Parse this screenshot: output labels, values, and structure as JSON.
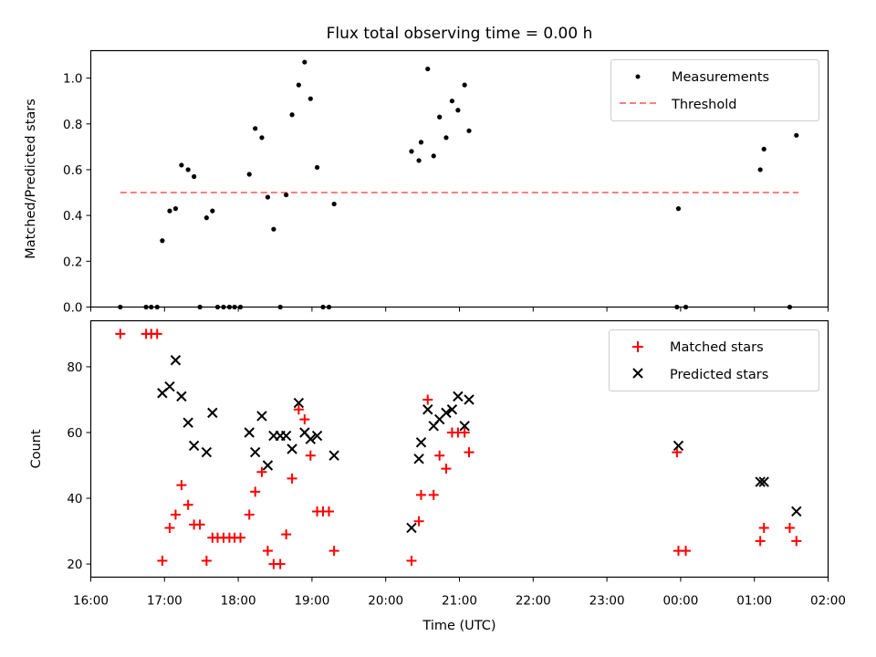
{
  "chart_data": {
    "type": "scatter",
    "title": "Flux total observing time = 0.00 h",
    "xlabel": "Time (UTC)",
    "x_ticks": [
      "16:00",
      "17:00",
      "18:00",
      "19:00",
      "20:00",
      "21:00",
      "22:00",
      "23:00",
      "00:00",
      "01:00",
      "02:00"
    ],
    "x_range_hours": [
      16,
      26
    ],
    "panels": [
      {
        "name": "ratio",
        "ylabel": "Matched/Predicted stars",
        "ylim": [
          0,
          1.12
        ],
        "y_ticks": [
          "0.0",
          "0.2",
          "0.4",
          "0.6",
          "0.8",
          "1.0"
        ],
        "legend": [
          "Measurements",
          "Threshold"
        ],
        "threshold": {
          "value": 0.5,
          "x_start": 16.4,
          "x_end": 25.6,
          "color": "#ff7f7f"
        },
        "measurements": {
          "color": "#000000",
          "x": [
            16.4,
            16.75,
            16.82,
            16.9,
            16.97,
            17.07,
            17.15,
            17.23,
            17.32,
            17.4,
            17.48,
            17.57,
            17.65,
            17.72,
            17.8,
            17.88,
            17.95,
            18.03,
            18.15,
            18.23,
            18.32,
            18.4,
            18.48,
            18.57,
            18.65,
            18.73,
            18.82,
            18.9,
            18.98,
            19.07,
            19.15,
            19.23,
            19.3,
            20.35,
            20.45,
            20.48,
            20.57,
            20.65,
            20.73,
            20.82,
            20.9,
            20.98,
            21.07,
            21.13,
            23.95,
            23.97,
            24.07,
            25.08,
            25.13,
            25.48,
            25.57
          ],
          "y": [
            0.0,
            0.0,
            0.0,
            0.0,
            0.29,
            0.42,
            0.43,
            0.62,
            0.6,
            0.57,
            0.0,
            0.39,
            0.42,
            0.0,
            0.0,
            0.0,
            0.0,
            0.0,
            0.58,
            0.78,
            0.74,
            0.48,
            0.34,
            0.0,
            0.49,
            0.84,
            0.97,
            1.07,
            0.91,
            0.61,
            0.0,
            0.0,
            0.45,
            0.68,
            0.64,
            0.72,
            1.04,
            0.66,
            0.83,
            0.74,
            0.9,
            0.86,
            0.97,
            0.77,
            0.0,
            0.43,
            0.0,
            0.6,
            0.69,
            0.0,
            0.75
          ]
        }
      },
      {
        "name": "counts",
        "ylabel": "Count",
        "ylim": [
          16,
          94
        ],
        "y_ticks": [
          "20",
          "40",
          "60",
          "80"
        ],
        "legend": [
          "Matched stars",
          "Predicted stars"
        ],
        "matched": {
          "color": "#ff0000",
          "x": [
            16.4,
            16.75,
            16.82,
            16.9,
            16.97,
            17.07,
            17.15,
            17.23,
            17.32,
            17.4,
            17.48,
            17.57,
            17.65,
            17.72,
            17.8,
            17.88,
            17.95,
            18.03,
            18.15,
            18.23,
            18.32,
            18.4,
            18.48,
            18.57,
            18.65,
            18.73,
            18.82,
            18.9,
            18.98,
            19.07,
            19.15,
            19.23,
            19.3,
            20.35,
            20.45,
            20.48,
            20.57,
            20.65,
            20.73,
            20.82,
            20.9,
            20.98,
            21.07,
            21.13,
            23.95,
            23.97,
            24.07,
            25.08,
            25.13,
            25.48,
            25.57
          ],
          "y": [
            90,
            90,
            90,
            90,
            21,
            31,
            35,
            44,
            38,
            32,
            32,
            21,
            28,
            28,
            28,
            28,
            28,
            28,
            35,
            42,
            48,
            24,
            20,
            20,
            29,
            46,
            67,
            64,
            53,
            36,
            36,
            36,
            24,
            21,
            33,
            41,
            70,
            41,
            53,
            49,
            60,
            60,
            60,
            54,
            54,
            24,
            24,
            27,
            31,
            31,
            27
          ]
        },
        "predicted": {
          "color": "#000000",
          "x": [
            16.97,
            17.07,
            17.15,
            17.23,
            17.32,
            17.4,
            17.57,
            17.65,
            18.15,
            18.23,
            18.32,
            18.4,
            18.48,
            18.57,
            18.65,
            18.73,
            18.82,
            18.9,
            18.98,
            19.07,
            19.3,
            20.35,
            20.45,
            20.48,
            20.57,
            20.65,
            20.73,
            20.82,
            20.9,
            20.98,
            21.07,
            21.13,
            23.97,
            25.08,
            25.13,
            25.57
          ],
          "y": [
            72,
            74,
            82,
            71,
            63,
            56,
            54,
            66,
            60,
            54,
            65,
            50,
            59,
            59,
            59,
            55,
            69,
            60,
            58,
            59,
            53,
            31,
            52,
            57,
            67,
            62,
            64,
            66,
            67,
            71,
            62,
            70,
            56,
            45,
            45,
            36
          ]
        }
      }
    ]
  }
}
